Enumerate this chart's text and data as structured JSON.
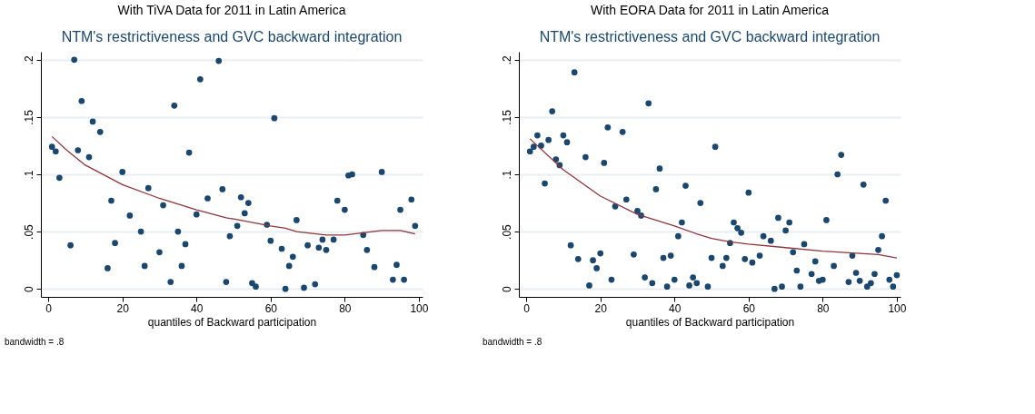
{
  "chart_data": [
    {
      "type": "scatter",
      "title": "With TiVA Data for 2011 in Latin America",
      "subtitle": "NTM's restrictiveness and GVC backward integration",
      "xlabel": "quantiles of Backward participation",
      "annotations": [
        "bandwidth = .8"
      ],
      "xlim": [
        -2,
        101
      ],
      "ylim": [
        -0.007,
        0.207
      ],
      "xticks": [
        0,
        20,
        40,
        60,
        80,
        100
      ],
      "yticks": [
        0,
        {
          "value": 0.05,
          "label": ".05"
        },
        {
          "value": 0.1,
          "label": ".1"
        },
        {
          "value": 0.15,
          "label": ".15"
        },
        {
          "value": 0.2,
          "label": ".2"
        }
      ],
      "grid": "y",
      "series": [
        {
          "marker": "circle",
          "color": "#1a476f",
          "x": [
            1,
            2,
            3,
            6,
            7,
            8,
            9,
            11,
            12,
            14,
            16,
            17,
            18,
            20,
            22,
            25,
            26,
            27,
            30,
            31,
            33,
            34,
            35,
            36,
            37,
            38,
            40,
            41,
            43,
            46,
            47,
            48,
            49,
            51,
            52,
            53,
            54,
            55,
            56,
            59,
            60,
            61,
            63,
            64,
            65,
            66,
            67,
            69,
            70,
            72,
            73,
            74,
            75,
            77,
            78,
            80,
            81,
            82,
            85,
            86,
            88,
            90,
            93,
            94,
            95,
            96,
            98,
            99
          ],
          "values": [
            0.124,
            0.12,
            0.097,
            0.038,
            0.2,
            0.121,
            0.164,
            0.115,
            0.146,
            0.137,
            0.018,
            0.077,
            0.04,
            0.102,
            0.064,
            0.05,
            0.02,
            0.088,
            0.032,
            0.073,
            0.006,
            0.16,
            0.05,
            0.02,
            0.039,
            0.119,
            0.065,
            0.183,
            0.079,
            0.199,
            0.087,
            0.006,
            0.046,
            0.055,
            0.08,
            0.066,
            0.075,
            0.005,
            0.002,
            0.056,
            0.042,
            0.149,
            0.035,
            0.0,
            0.02,
            0.028,
            0.06,
            0.001,
            0.038,
            0.004,
            0.036,
            0.043,
            0.034,
            0.043,
            0.077,
            0.069,
            0.099,
            0.1,
            0.047,
            0.034,
            0.019,
            0.102,
            0.008,
            0.021,
            0.069,
            0.008,
            0.078,
            0.055
          ]
        },
        {
          "type": "line",
          "color": "#90353b",
          "x": [
            1,
            5,
            10,
            20,
            30,
            40,
            48,
            50,
            60,
            64,
            67,
            75,
            80,
            85,
            90,
            95,
            99
          ],
          "values": [
            0.133,
            0.121,
            0.108,
            0.091,
            0.079,
            0.069,
            0.062,
            0.061,
            0.055,
            0.053,
            0.05,
            0.047,
            0.047,
            0.049,
            0.051,
            0.051,
            0.048
          ]
        }
      ]
    },
    {
      "type": "scatter",
      "title": "With EORA Data for 2011 in Latin America",
      "subtitle": "NTM's restrictiveness and GVC backward integration",
      "xlabel": "quantiles of Backward participation",
      "annotations": [
        "bandwidth = .8"
      ],
      "xlim": [
        -2,
        101
      ],
      "ylim": [
        -0.007,
        0.207
      ],
      "xticks": [
        0,
        20,
        40,
        60,
        80,
        100
      ],
      "yticks": [
        0,
        {
          "value": 0.05,
          "label": ".05"
        },
        {
          "value": 0.1,
          "label": ".1"
        },
        {
          "value": 0.15,
          "label": ".15"
        },
        {
          "value": 0.2,
          "label": ".2"
        }
      ],
      "grid": "y",
      "series": [
        {
          "marker": "circle",
          "color": "#1a476f",
          "x": [
            1,
            2,
            3,
            4,
            5,
            6,
            7,
            8,
            9,
            10,
            11,
            12,
            13,
            14,
            16,
            17,
            18,
            19,
            20,
            21,
            22,
            23,
            24,
            26,
            27,
            29,
            30,
            31,
            32,
            33,
            34,
            35,
            36,
            37,
            38,
            39,
            40,
            41,
            42,
            43,
            44,
            45,
            46,
            47,
            49,
            50,
            51,
            53,
            54,
            55,
            56,
            57,
            58,
            59,
            60,
            61,
            63,
            64,
            66,
            67,
            68,
            69,
            70,
            71,
            72,
            73,
            74,
            75,
            77,
            78,
            79,
            80,
            81,
            83,
            84,
            85,
            87,
            88,
            89,
            90,
            91,
            92,
            93,
            94,
            95,
            96,
            97,
            98,
            99,
            100
          ],
          "values": [
            0.12,
            0.124,
            0.134,
            0.125,
            0.092,
            0.13,
            0.155,
            0.113,
            0.108,
            0.134,
            0.128,
            0.038,
            0.189,
            0.026,
            0.115,
            0.003,
            0.025,
            0.018,
            0.031,
            0.11,
            0.141,
            0.008,
            0.072,
            0.137,
            0.078,
            0.03,
            0.068,
            0.064,
            0.01,
            0.162,
            0.005,
            0.087,
            0.105,
            0.027,
            0.002,
            0.029,
            0.008,
            0.046,
            0.058,
            0.09,
            0.003,
            0.01,
            0.005,
            0.075,
            0.002,
            0.027,
            0.124,
            0.02,
            0.027,
            0.04,
            0.058,
            0.053,
            0.049,
            0.026,
            0.084,
            0.023,
            0.029,
            0.046,
            0.042,
            0.0,
            0.062,
            0.002,
            0.051,
            0.058,
            0.032,
            0.016,
            0.002,
            0.039,
            0.013,
            0.024,
            0.007,
            0.008,
            0.06,
            0.02,
            0.1,
            0.117,
            0.006,
            0.029,
            0.014,
            0.007,
            0.091,
            0.002,
            0.005,
            0.013,
            0.034,
            0.046,
            0.077,
            0.008,
            0.002,
            0.012
          ]
        },
        {
          "type": "line",
          "color": "#90353b",
          "x": [
            1,
            10,
            20,
            30,
            40,
            46,
            50,
            55,
            60,
            70,
            80,
            90,
            95,
            100
          ],
          "values": [
            0.131,
            0.104,
            0.081,
            0.065,
            0.055,
            0.048,
            0.044,
            0.041,
            0.039,
            0.036,
            0.033,
            0.031,
            0.03,
            0.027
          ]
        }
      ]
    }
  ]
}
